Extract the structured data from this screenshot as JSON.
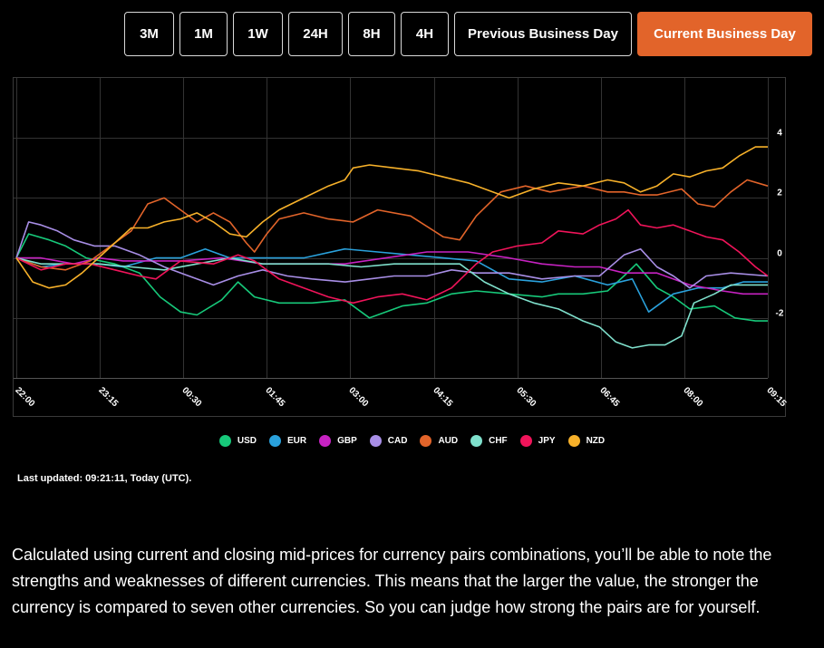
{
  "tabs": [
    {
      "label": "3M",
      "active": false
    },
    {
      "label": "1M",
      "active": false
    },
    {
      "label": "1W",
      "active": false
    },
    {
      "label": "24H",
      "active": false
    },
    {
      "label": "8H",
      "active": false
    },
    {
      "label": "4H",
      "active": false
    },
    {
      "label": "Previous Business Day",
      "active": false
    },
    {
      "label": "Current Business Day",
      "active": true
    }
  ],
  "colors": {
    "accent": "#e2642a",
    "grid": "#333333"
  },
  "chart_data": {
    "type": "line",
    "title": "",
    "xlabel": "",
    "ylabel": "",
    "x_ticks": [
      "22:00",
      "23:15",
      "00:30",
      "01:45",
      "03:00",
      "04:15",
      "05:30",
      "06:45",
      "08:00",
      "09:15"
    ],
    "y_ticks": [
      -2,
      0,
      2,
      4
    ],
    "ylim": [
      -4,
      6
    ],
    "xlim": [
      0,
      9.15
    ],
    "grid": true,
    "legend_position": "bottom",
    "series": [
      {
        "name": "USD",
        "color": "#17c97a",
        "points": [
          [
            0,
            0
          ],
          [
            0.15,
            0.8
          ],
          [
            0.4,
            0.6
          ],
          [
            0.6,
            0.4
          ],
          [
            0.85,
            0
          ],
          [
            1.2,
            -0.2
          ],
          [
            1.5,
            -0.5
          ],
          [
            1.75,
            -1.3
          ],
          [
            2,
            -1.8
          ],
          [
            2.2,
            -1.9
          ],
          [
            2.5,
            -1.4
          ],
          [
            2.7,
            -0.8
          ],
          [
            2.9,
            -1.3
          ],
          [
            3.2,
            -1.5
          ],
          [
            3.6,
            -1.5
          ],
          [
            4,
            -1.4
          ],
          [
            4.3,
            -2
          ],
          [
            4.7,
            -1.6
          ],
          [
            5,
            -1.5
          ],
          [
            5.3,
            -1.2
          ],
          [
            5.6,
            -1.1
          ],
          [
            6,
            -1.2
          ],
          [
            6.4,
            -1.3
          ],
          [
            6.6,
            -1.2
          ],
          [
            6.9,
            -1.2
          ],
          [
            7.2,
            -1.1
          ],
          [
            7.4,
            -0.6
          ],
          [
            7.55,
            -0.2
          ],
          [
            7.8,
            -1
          ],
          [
            8,
            -1.3
          ],
          [
            8.2,
            -1.7
          ],
          [
            8.5,
            -1.6
          ],
          [
            8.75,
            -2
          ],
          [
            9.0,
            -2.1
          ],
          [
            9.15,
            -2.1
          ]
        ]
      },
      {
        "name": "EUR",
        "color": "#2aa1dc",
        "points": [
          [
            0,
            0
          ],
          [
            0.3,
            -0.3
          ],
          [
            0.6,
            -0.2
          ],
          [
            1,
            -0.2
          ],
          [
            1.3,
            -0.3
          ],
          [
            1.7,
            0
          ],
          [
            2,
            0
          ],
          [
            2.3,
            0.3
          ],
          [
            2.6,
            0
          ],
          [
            3,
            0
          ],
          [
            3.5,
            0
          ],
          [
            4,
            0.3
          ],
          [
            4.4,
            0.2
          ],
          [
            4.8,
            0.1
          ],
          [
            5.2,
            0
          ],
          [
            5.6,
            -0.1
          ],
          [
            6,
            -0.7
          ],
          [
            6.4,
            -0.8
          ],
          [
            6.8,
            -0.6
          ],
          [
            7.2,
            -0.9
          ],
          [
            7.5,
            -0.7
          ],
          [
            7.7,
            -1.8
          ],
          [
            8,
            -1.2
          ],
          [
            8.3,
            -1
          ],
          [
            8.6,
            -1
          ],
          [
            8.85,
            -0.8
          ],
          [
            9.15,
            -0.8
          ]
        ]
      },
      {
        "name": "GBP",
        "color": "#c722c2",
        "points": [
          [
            0,
            0
          ],
          [
            0.3,
            0
          ],
          [
            0.7,
            -0.2
          ],
          [
            1,
            0
          ],
          [
            1.3,
            -0.1
          ],
          [
            1.6,
            -0.1
          ],
          [
            2,
            -0.1
          ],
          [
            2.5,
            0
          ],
          [
            3,
            -0.2
          ],
          [
            3.5,
            -0.2
          ],
          [
            4,
            -0.2
          ],
          [
            4.5,
            0
          ],
          [
            5,
            0.2
          ],
          [
            5.5,
            0.2
          ],
          [
            6,
            0
          ],
          [
            6.4,
            -0.2
          ],
          [
            6.8,
            -0.3
          ],
          [
            7.1,
            -0.3
          ],
          [
            7.4,
            -0.5
          ],
          [
            7.8,
            -0.5
          ],
          [
            8.2,
            -0.9
          ],
          [
            8.6,
            -1.1
          ],
          [
            8.85,
            -1.2
          ],
          [
            9.15,
            -1.2
          ]
        ]
      },
      {
        "name": "CAD",
        "color": "#a88ee6",
        "points": [
          [
            0,
            0
          ],
          [
            0.15,
            1.2
          ],
          [
            0.3,
            1.1
          ],
          [
            0.5,
            0.9
          ],
          [
            0.7,
            0.6
          ],
          [
            0.95,
            0.4
          ],
          [
            1.2,
            0.4
          ],
          [
            1.5,
            0.1
          ],
          [
            1.8,
            -0.3
          ],
          [
            2.1,
            -0.6
          ],
          [
            2.4,
            -0.9
          ],
          [
            2.7,
            -0.6
          ],
          [
            3,
            -0.4
          ],
          [
            3.3,
            -0.6
          ],
          [
            3.6,
            -0.7
          ],
          [
            4,
            -0.8
          ],
          [
            4.3,
            -0.7
          ],
          [
            4.6,
            -0.6
          ],
          [
            5,
            -0.6
          ],
          [
            5.3,
            -0.4
          ],
          [
            5.6,
            -0.5
          ],
          [
            6,
            -0.5
          ],
          [
            6.4,
            -0.7
          ],
          [
            6.8,
            -0.6
          ],
          [
            7.1,
            -0.6
          ],
          [
            7.4,
            0.1
          ],
          [
            7.6,
            0.3
          ],
          [
            7.8,
            -0.3
          ],
          [
            8,
            -0.6
          ],
          [
            8.2,
            -1
          ],
          [
            8.4,
            -0.6
          ],
          [
            8.7,
            -0.5
          ],
          [
            9.15,
            -0.6
          ]
        ]
      },
      {
        "name": "AUD",
        "color": "#e2642a",
        "points": [
          [
            0,
            0
          ],
          [
            0.3,
            -0.3
          ],
          [
            0.6,
            -0.4
          ],
          [
            0.9,
            -0.1
          ],
          [
            1.2,
            0.5
          ],
          [
            1.4,
            0.9
          ],
          [
            1.6,
            1.8
          ],
          [
            1.8,
            2
          ],
          [
            2,
            1.6
          ],
          [
            2.2,
            1.2
          ],
          [
            2.4,
            1.5
          ],
          [
            2.6,
            1.2
          ],
          [
            2.8,
            0.5
          ],
          [
            2.9,
            0.2
          ],
          [
            3.05,
            0.8
          ],
          [
            3.2,
            1.3
          ],
          [
            3.5,
            1.5
          ],
          [
            3.8,
            1.3
          ],
          [
            4.1,
            1.2
          ],
          [
            4.4,
            1.6
          ],
          [
            4.8,
            1.4
          ],
          [
            5.2,
            0.7
          ],
          [
            5.4,
            0.6
          ],
          [
            5.6,
            1.4
          ],
          [
            5.9,
            2.2
          ],
          [
            6.2,
            2.4
          ],
          [
            6.5,
            2.2
          ],
          [
            6.9,
            2.4
          ],
          [
            7.2,
            2.2
          ],
          [
            7.4,
            2.2
          ],
          [
            7.6,
            2.1
          ],
          [
            7.8,
            2.1
          ],
          [
            8.1,
            2.3
          ],
          [
            8.3,
            1.8
          ],
          [
            8.5,
            1.7
          ],
          [
            8.7,
            2.2
          ],
          [
            8.9,
            2.6
          ],
          [
            9.15,
            2.4
          ]
        ]
      },
      {
        "name": "CHF",
        "color": "#7fe0cc",
        "points": [
          [
            0,
            0
          ],
          [
            0.3,
            -0.2
          ],
          [
            0.6,
            -0.2
          ],
          [
            1,
            -0.2
          ],
          [
            1.4,
            -0.3
          ],
          [
            1.8,
            -0.4
          ],
          [
            2.2,
            -0.2
          ],
          [
            2.6,
            0
          ],
          [
            3,
            -0.2
          ],
          [
            3.4,
            -0.2
          ],
          [
            3.8,
            -0.2
          ],
          [
            4.2,
            -0.3
          ],
          [
            4.6,
            -0.2
          ],
          [
            5,
            -0.2
          ],
          [
            5.4,
            -0.2
          ],
          [
            5.7,
            -0.8
          ],
          [
            6,
            -1.2
          ],
          [
            6.3,
            -1.5
          ],
          [
            6.6,
            -1.7
          ],
          [
            6.9,
            -2.1
          ],
          [
            7.1,
            -2.3
          ],
          [
            7.3,
            -2.8
          ],
          [
            7.5,
            -3
          ],
          [
            7.7,
            -2.9
          ],
          [
            7.9,
            -2.9
          ],
          [
            8.1,
            -2.6
          ],
          [
            8.25,
            -1.5
          ],
          [
            8.5,
            -1.2
          ],
          [
            8.7,
            -0.9
          ],
          [
            8.9,
            -0.9
          ],
          [
            9.15,
            -0.9
          ]
        ]
      },
      {
        "name": "JPY",
        "color": "#f0145a",
        "points": [
          [
            0,
            0
          ],
          [
            0.3,
            -0.4
          ],
          [
            0.6,
            -0.2
          ],
          [
            0.9,
            -0.2
          ],
          [
            1.2,
            -0.4
          ],
          [
            1.5,
            -0.6
          ],
          [
            1.7,
            -0.7
          ],
          [
            2,
            -0.1
          ],
          [
            2.4,
            -0.2
          ],
          [
            2.7,
            0.1
          ],
          [
            2.9,
            -0.1
          ],
          [
            3.2,
            -0.7
          ],
          [
            3.5,
            -1
          ],
          [
            3.8,
            -1.3
          ],
          [
            4.1,
            -1.5
          ],
          [
            4.4,
            -1.3
          ],
          [
            4.7,
            -1.2
          ],
          [
            5,
            -1.4
          ],
          [
            5.3,
            -1
          ],
          [
            5.6,
            -0.2
          ],
          [
            5.8,
            0.2
          ],
          [
            6.1,
            0.4
          ],
          [
            6.4,
            0.5
          ],
          [
            6.6,
            0.9
          ],
          [
            6.9,
            0.8
          ],
          [
            7.1,
            1.1
          ],
          [
            7.3,
            1.3
          ],
          [
            7.45,
            1.6
          ],
          [
            7.6,
            1.1
          ],
          [
            7.8,
            1
          ],
          [
            8,
            1.1
          ],
          [
            8.2,
            0.9
          ],
          [
            8.4,
            0.7
          ],
          [
            8.6,
            0.6
          ],
          [
            8.8,
            0.2
          ],
          [
            9.0,
            -0.3
          ],
          [
            9.15,
            -0.6
          ]
        ]
      },
      {
        "name": "NZD",
        "color": "#f7b12a",
        "points": [
          [
            0,
            0
          ],
          [
            0.2,
            -0.8
          ],
          [
            0.4,
            -1
          ],
          [
            0.6,
            -0.9
          ],
          [
            0.8,
            -0.5
          ],
          [
            1.0,
            0
          ],
          [
            1.2,
            0.5
          ],
          [
            1.4,
            1
          ],
          [
            1.6,
            1
          ],
          [
            1.8,
            1.2
          ],
          [
            2,
            1.3
          ],
          [
            2.2,
            1.5
          ],
          [
            2.4,
            1.2
          ],
          [
            2.6,
            0.8
          ],
          [
            2.8,
            0.7
          ],
          [
            3.0,
            1.2
          ],
          [
            3.2,
            1.6
          ],
          [
            3.5,
            2
          ],
          [
            3.8,
            2.4
          ],
          [
            4.0,
            2.6
          ],
          [
            4.1,
            3
          ],
          [
            4.3,
            3.1
          ],
          [
            4.6,
            3
          ],
          [
            4.9,
            2.9
          ],
          [
            5.2,
            2.7
          ],
          [
            5.5,
            2.5
          ],
          [
            5.8,
            2.2
          ],
          [
            6.0,
            2
          ],
          [
            6.3,
            2.3
          ],
          [
            6.6,
            2.5
          ],
          [
            6.9,
            2.4
          ],
          [
            7.2,
            2.6
          ],
          [
            7.4,
            2.5
          ],
          [
            7.6,
            2.2
          ],
          [
            7.8,
            2.4
          ],
          [
            8.0,
            2.8
          ],
          [
            8.2,
            2.7
          ],
          [
            8.4,
            2.9
          ],
          [
            8.6,
            3
          ],
          [
            8.8,
            3.4
          ],
          [
            9.0,
            3.7
          ],
          [
            9.15,
            3.7
          ]
        ]
      }
    ]
  },
  "last_updated": "Last updated: 09:21:11, Today (UTC).",
  "description": "Calculated using current and closing mid-prices for currency pairs combinations, you’ll be able to note the strengths and weaknesses of different currencies. This means that the larger the value, the stronger the currency is compared to seven other currencies. So you can judge how strong the pairs are for yourself."
}
